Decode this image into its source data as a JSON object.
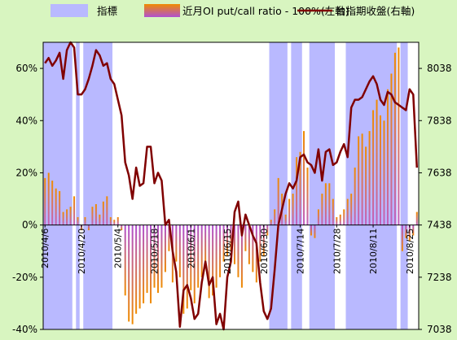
{
  "chart_data": {
    "type": "bar",
    "title": "",
    "legend": {
      "placement": "top",
      "items": [
        {
          "key": "bands",
          "label": "指標",
          "color": "#b9b9ff"
        },
        {
          "key": "bars",
          "label": "近月OI put/call ratio - 100%(左軸)",
          "color_top": "#f08c00",
          "color_bottom": "#b050d0"
        },
        {
          "key": "line",
          "label": "台指期收盤(右軸)",
          "color": "#800000"
        }
      ]
    },
    "y_left": {
      "min": -40,
      "max": 70,
      "ticks": [
        -40,
        -20,
        0,
        20,
        40,
        60
      ],
      "tick_labels": [
        "-40%",
        "-20%",
        "0%",
        "20%",
        "40%",
        "60%"
      ]
    },
    "y_right": {
      "min": 7038,
      "max": 8138,
      "ticks": [
        7038,
        7238,
        7438,
        7638,
        7838,
        8038
      ],
      "tick_labels": [
        "7038",
        "7238",
        "7438",
        "7638",
        "7838",
        "8038"
      ]
    },
    "grid": false,
    "x_ticks": [
      {
        "index": 0,
        "label": "2010/4/6"
      },
      {
        "index": 10,
        "label": "2010/4/20"
      },
      {
        "index": 20,
        "label": "2010/5/4"
      },
      {
        "index": 30,
        "label": "2010/5/18"
      },
      {
        "index": 40,
        "label": "2010/6/1"
      },
      {
        "index": 50,
        "label": "2010/6/15"
      },
      {
        "index": 60,
        "label": "2010/6/30"
      },
      {
        "index": 70,
        "label": "2010/7/14"
      },
      {
        "index": 80,
        "label": "2010/7/28"
      },
      {
        "index": 90,
        "label": "2010/8/11"
      },
      {
        "index": 100,
        "label": "2010/8/25"
      }
    ],
    "bands": [
      [
        0,
        8
      ],
      [
        9,
        10
      ],
      [
        11,
        19
      ],
      [
        62,
        67
      ],
      [
        68,
        71
      ],
      [
        73,
        80
      ],
      [
        83,
        97
      ],
      [
        98,
        100
      ]
    ],
    "put_call_ratio_minus_100": [
      18,
      20,
      17,
      14,
      13,
      5,
      6,
      7,
      11,
      3,
      -2,
      3,
      -2,
      7,
      8,
      4,
      9,
      11,
      3,
      2,
      3,
      -2,
      -27,
      -37,
      -38,
      -34,
      -32,
      -30,
      -26,
      -30,
      -24,
      -26,
      -24,
      -18,
      -10,
      -22,
      -14,
      -20,
      -34,
      -32,
      -25,
      -30,
      -24,
      -20,
      -16,
      -28,
      -27,
      -24,
      -20,
      -14,
      -12,
      -10,
      -15,
      -20,
      -24,
      -10,
      -15,
      -18,
      -22,
      -14,
      -12,
      -4,
      2,
      6,
      18,
      12,
      4,
      10,
      12,
      26,
      28,
      36,
      22,
      -4,
      -5,
      6,
      12,
      16,
      16,
      10,
      3,
      4,
      6,
      10,
      12,
      22,
      34,
      35,
      30,
      36,
      44,
      48,
      42,
      40,
      52,
      58,
      66,
      68,
      -10,
      -5,
      -6,
      -4,
      5
    ],
    "taifex_close": [
      8058,
      8078,
      8048,
      8068,
      8098,
      7998,
      8108,
      8138,
      8118,
      7938,
      7938,
      7958,
      7998,
      8048,
      8108,
      8088,
      8048,
      8058,
      7998,
      7978,
      7918,
      7858,
      7678,
      7628,
      7538,
      7658,
      7588,
      7598,
      7738,
      7738,
      7598,
      7638,
      7608,
      7438,
      7458,
      7338,
      7258,
      7048,
      7188,
      7208,
      7158,
      7078,
      7098,
      7218,
      7298,
      7208,
      7238,
      7058,
      7098,
      7038,
      7238,
      7298,
      7488,
      7528,
      7398,
      7478,
      7438,
      7398,
      7368,
      7218,
      7108,
      7078,
      7118,
      7268,
      7438,
      7498,
      7558,
      7598,
      7578,
      7608,
      7698,
      7708,
      7678,
      7668,
      7638,
      7728,
      7608,
      7718,
      7728,
      7668,
      7678,
      7718,
      7748,
      7698,
      7888,
      7918,
      7918,
      7928,
      7958,
      7988,
      8008,
      7978,
      7918,
      7898,
      7948,
      7938,
      7908,
      7898,
      7888,
      7878,
      7958,
      7938,
      7658
    ]
  }
}
